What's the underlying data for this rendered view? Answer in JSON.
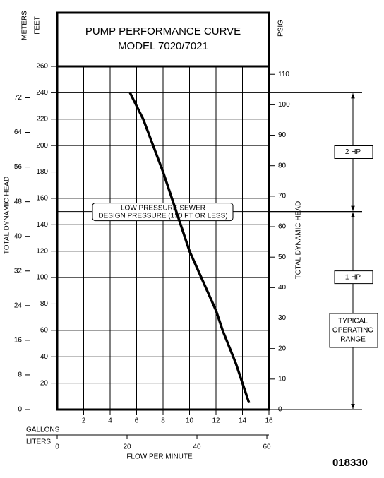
{
  "chart_data": {
    "type": "line",
    "title": "PUMP PERFORMANCE CURVE",
    "subtitle": "MODEL 7020/7021",
    "xlabel": "FLOW PER MINUTE",
    "xunit": "GALLONS",
    "x2unit": "LITERS",
    "ylabel": "TOTAL DYNAMIC HEAD",
    "yunit": "FEET",
    "y2label": "TOTAL DYNAMIC HEAD",
    "y2unit": "PSIG",
    "y3unit": "METERS",
    "x": [
      5.5,
      6.5,
      8,
      10,
      12,
      12.5,
      13.5,
      14.5
    ],
    "series": [
      {
        "color": "#000000",
        "values": [
          240,
          220,
          180,
          120,
          75,
          60,
          35,
          5
        ]
      }
    ],
    "xlim": [
      0,
      16
    ],
    "xticks": [
      2,
      4,
      6,
      8,
      10,
      12,
      14,
      16
    ],
    "x2lim": [
      0,
      60.6
    ],
    "x2ticks": [
      0,
      20,
      40,
      60
    ],
    "ylim": [
      0,
      260
    ],
    "yticks": [
      20,
      40,
      60,
      80,
      100,
      120,
      140,
      160,
      180,
      200,
      220,
      240,
      260
    ],
    "y2lim": [
      0,
      112.6
    ],
    "y2ticks": [
      0,
      10,
      20,
      30,
      40,
      50,
      60,
      70,
      80,
      90,
      100,
      110
    ],
    "y3lim": [
      0,
      79.25
    ],
    "y3ticks": [
      0,
      8,
      16,
      24,
      32,
      40,
      48,
      56,
      64,
      72
    ],
    "grid": true,
    "design_pressure": {
      "lines": [
        "LOW PRESSURE SEWER",
        "DESIGN PRESSURE (150 FT OR LESS)"
      ],
      "value": 150
    },
    "hp_ranges": [
      {
        "label": "2 HP",
        "from": 150,
        "to": 240
      },
      {
        "label": "1 HP",
        "from": 0,
        "to": 150
      }
    ],
    "operating_range": {
      "lines": [
        "TYPICAL",
        "OPERATING",
        "RANGE"
      ]
    },
    "figure_number": "018330"
  }
}
